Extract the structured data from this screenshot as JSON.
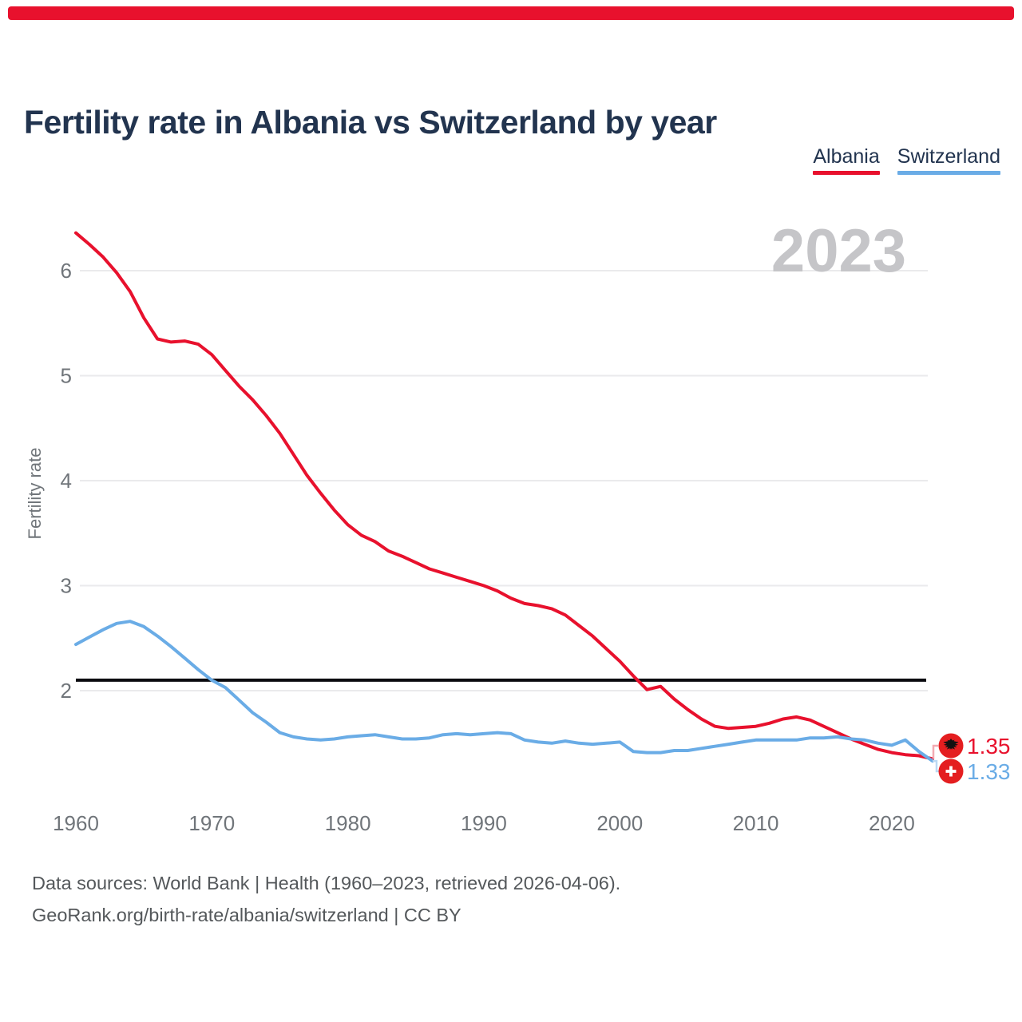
{
  "page": {
    "accent_bar_color": "#e8112d",
    "background": "#ffffff"
  },
  "colors": {
    "albania": "#e8112d",
    "switzerland": "#6aace6",
    "albania_connector": "#f3aab2",
    "switzerland_connector": "#bcd9f3",
    "flag_red": "#e41e20",
    "title": "#22344f",
    "tick": "#70757a",
    "grid": "#eaeaec",
    "reference": "#0b0b10",
    "watermark": "#c5c5c8",
    "footer": "#54585b"
  },
  "footer": {
    "line1": "Data sources: World Bank | Health (1960–2023, retrieved 2026-04-06).",
    "line2": "GeoRank.org/birth-rate/albania/switzerland | CC BY"
  },
  "chart_data": {
    "type": "line",
    "title": "Fertility rate in Albania vs Switzerland by year",
    "ylabel": "Fertility rate",
    "watermark": "2023",
    "legend_position": "top-right",
    "grid": "horizontal",
    "xlim": [
      1960,
      2023
    ],
    "ylim": [
      1.2,
      6.5
    ],
    "x_ticks": [
      1960,
      1970,
      1980,
      1990,
      2000,
      2010,
      2020
    ],
    "y_ticks": [
      2,
      3,
      4,
      5,
      6
    ],
    "reference_line": {
      "value": 2.1
    },
    "x": [
      1960,
      1961,
      1962,
      1963,
      1964,
      1965,
      1966,
      1967,
      1968,
      1969,
      1970,
      1971,
      1972,
      1973,
      1974,
      1975,
      1976,
      1977,
      1978,
      1979,
      1980,
      1981,
      1982,
      1983,
      1984,
      1985,
      1986,
      1987,
      1988,
      1989,
      1990,
      1991,
      1992,
      1993,
      1994,
      1995,
      1996,
      1997,
      1998,
      1999,
      2000,
      2001,
      2002,
      2003,
      2004,
      2005,
      2006,
      2007,
      2008,
      2009,
      2010,
      2011,
      2012,
      2013,
      2014,
      2015,
      2016,
      2017,
      2018,
      2019,
      2020,
      2021,
      2022,
      2023
    ],
    "series": [
      {
        "name": "Albania",
        "color": "#e8112d",
        "end_label": "1.35",
        "values": [
          6.36,
          6.25,
          6.13,
          5.98,
          5.8,
          5.55,
          5.35,
          5.32,
          5.33,
          5.3,
          5.2,
          5.05,
          4.9,
          4.77,
          4.62,
          4.45,
          4.25,
          4.05,
          3.88,
          3.72,
          3.58,
          3.48,
          3.42,
          3.33,
          3.28,
          3.22,
          3.16,
          3.12,
          3.08,
          3.04,
          3.0,
          2.95,
          2.88,
          2.83,
          2.81,
          2.78,
          2.72,
          2.62,
          2.52,
          2.4,
          2.28,
          2.14,
          2.01,
          2.04,
          1.92,
          1.82,
          1.73,
          1.66,
          1.64,
          1.65,
          1.66,
          1.69,
          1.73,
          1.75,
          1.72,
          1.66,
          1.6,
          1.54,
          1.49,
          1.44,
          1.41,
          1.39,
          1.38,
          1.35
        ]
      },
      {
        "name": "Switzerland",
        "color": "#6aace6",
        "end_label": "1.33",
        "values": [
          2.44,
          2.51,
          2.58,
          2.64,
          2.66,
          2.61,
          2.52,
          2.42,
          2.31,
          2.2,
          2.1,
          2.03,
          1.91,
          1.79,
          1.7,
          1.6,
          1.56,
          1.54,
          1.53,
          1.54,
          1.56,
          1.57,
          1.58,
          1.56,
          1.54,
          1.54,
          1.55,
          1.58,
          1.59,
          1.58,
          1.59,
          1.6,
          1.59,
          1.53,
          1.51,
          1.5,
          1.52,
          1.5,
          1.49,
          1.5,
          1.51,
          1.42,
          1.41,
          1.41,
          1.43,
          1.43,
          1.45,
          1.47,
          1.49,
          1.51,
          1.53,
          1.53,
          1.53,
          1.53,
          1.55,
          1.55,
          1.56,
          1.54,
          1.53,
          1.5,
          1.48,
          1.53,
          1.42,
          1.33
        ]
      }
    ]
  }
}
